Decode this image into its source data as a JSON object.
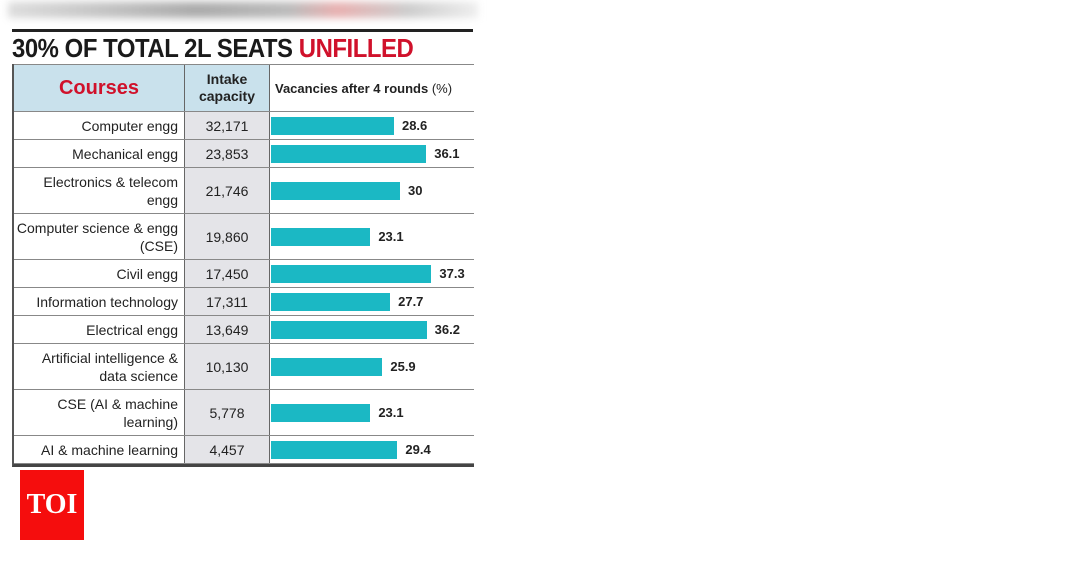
{
  "title": {
    "main": "30% OF TOTAL 2L SEATS",
    "highlight": "UNFILLED"
  },
  "headers": {
    "courses": "Courses",
    "intake": "Intake capacity",
    "vacancies": "Vacancies after 4 rounds",
    "unit": "(%)"
  },
  "logo": "TOI",
  "chart_data": {
    "type": "bar",
    "orientation": "horizontal",
    "title": "30% OF TOTAL 2L SEATS UNFILLED",
    "bar_color": "#1bb8c4",
    "rows": [
      {
        "course": "Computer engg",
        "intake": "32,171",
        "vacancy": 28.6
      },
      {
        "course": "Mechanical engg",
        "intake": "23,853",
        "vacancy": 36.1
      },
      {
        "course": "Electronics & telecom engg",
        "intake": "21,746",
        "vacancy": 30
      },
      {
        "course": "Computer science & engg (CSE)",
        "intake": "19,860",
        "vacancy": 23.1
      },
      {
        "course": "Civil engg",
        "intake": "17,450",
        "vacancy": 37.3
      },
      {
        "course": "Information technology",
        "intake": "17,311",
        "vacancy": 27.7
      },
      {
        "course": "Electrical engg",
        "intake": "13,649",
        "vacancy": 36.2
      },
      {
        "course": "Artificial intelligence & data science",
        "intake": "10,130",
        "vacancy": 25.9
      },
      {
        "course": "CSE (AI & machine learning)",
        "intake": "5,778",
        "vacancy": 23.1
      },
      {
        "course": "AI & machine learning",
        "intake": "4,457",
        "vacancy": 29.4
      }
    ]
  }
}
